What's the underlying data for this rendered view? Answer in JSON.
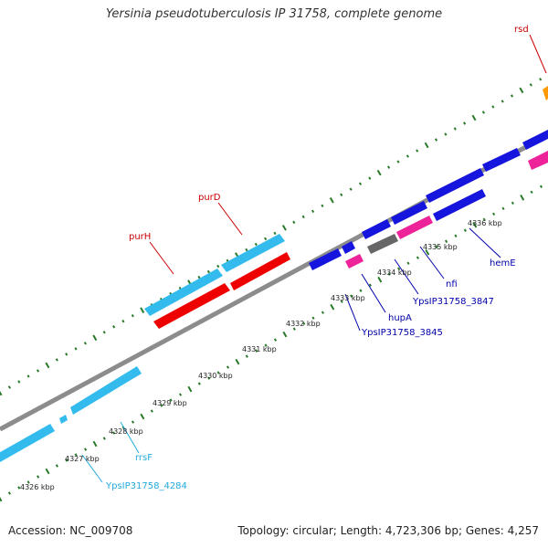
{
  "title": "Yersinia pseudotuberculosis IP 31758, complete genome",
  "footer": {
    "accession": "Accession: NC_009708",
    "summary": "Topology: circular; Length: 4,723,306 bp; Genes: 4,257"
  },
  "colors": {
    "backbone": "#8c8c8c",
    "dots": "#2a7a2a",
    "label_red": "#cc0000",
    "label_blue": "#0000aa",
    "label_cyan": "#22aadd"
  },
  "tick_labels": [
    "4326 kbp",
    "4327 kbp",
    "4328 kbp",
    "4329 kbp",
    "4330 kbp",
    "4331 kbp",
    "4332 kbp",
    "4333 kbp",
    "4334 kbp",
    "4335 kbp",
    "4336 kbp"
  ],
  "features": [
    {
      "name": "purH",
      "color": "red"
    },
    {
      "name": "purD",
      "color": "red"
    },
    {
      "name": "rsd",
      "color": "red"
    },
    {
      "name": "hemE",
      "color": "blue"
    },
    {
      "name": "nfi",
      "color": "blue"
    },
    {
      "name": "YpsIP31758_3847",
      "color": "blue"
    },
    {
      "name": "hupA",
      "color": "blue"
    },
    {
      "name": "YpsIP31758_3845",
      "color": "blue"
    },
    {
      "name": "rrsF",
      "color": "cyan"
    },
    {
      "name": "YpsIP31758_4284",
      "color": "cyan"
    }
  ]
}
